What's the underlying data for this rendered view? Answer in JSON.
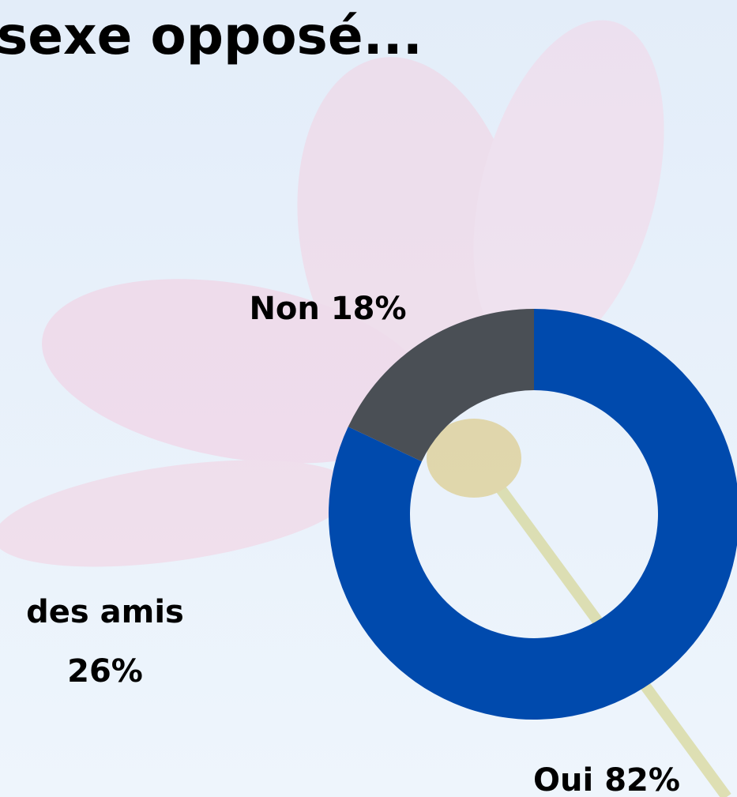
{
  "chart_data": {
    "type": "donut",
    "title": "sexe opposé...",
    "categories": [
      "Oui",
      "Non"
    ],
    "values": [
      82,
      18
    ],
    "value_labels": [
      "82%",
      "18%"
    ],
    "colors": [
      "#004aad",
      "#4a4f55"
    ],
    "annotations": [
      "des amis",
      "26%"
    ]
  }
}
